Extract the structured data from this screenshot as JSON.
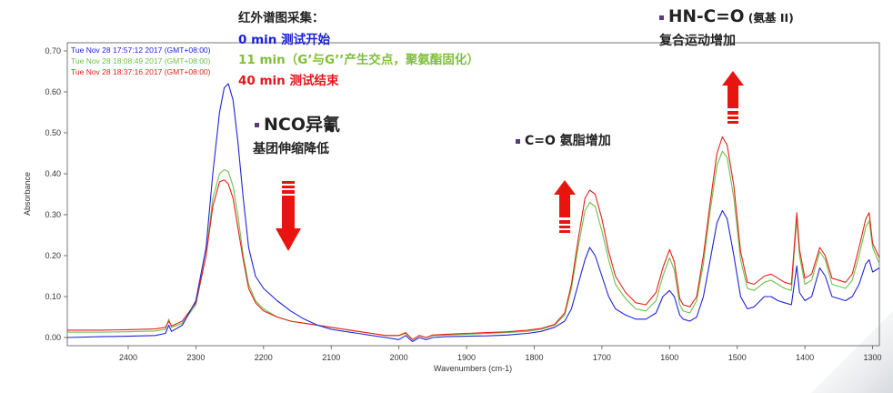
{
  "chart_data": {
    "type": "line",
    "xlabel": "Wavenumbers (cm-1)",
    "ylabel": "Absorbance",
    "xlim": [
      2490,
      1290
    ],
    "ylim": [
      -0.02,
      0.72
    ],
    "x_ticks": [
      2400,
      2300,
      2200,
      2100,
      2000,
      1900,
      1800,
      1700,
      1600,
      1500,
      1400,
      1300
    ],
    "x_tick_labels": [
      "2400",
      "2300",
      "2200",
      "2100",
      "2000",
      "1900",
      "1800",
      "1700",
      "1600",
      "1500",
      "1400",
      "1300"
    ],
    "y_ticks": [
      0.0,
      0.1,
      0.2,
      0.3,
      0.4,
      0.5,
      0.6,
      0.7
    ],
    "y_tick_labels": [
      "0.00",
      "0.10",
      "0.20",
      "0.30",
      "0.40",
      "0.50",
      "0.60",
      "0.70"
    ],
    "legend_position": "top-left",
    "series": [
      {
        "name": "Tue Nov 28 17:57:12 2017 (GMT+08:00)",
        "color": "#1f24d6",
        "points": [
          [
            2490,
            0.0
          ],
          [
            2440,
            0.002
          ],
          [
            2400,
            0.003
          ],
          [
            2360,
            0.005
          ],
          [
            2345,
            0.01
          ],
          [
            2340,
            0.03
          ],
          [
            2336,
            0.015
          ],
          [
            2320,
            0.03
          ],
          [
            2300,
            0.09
          ],
          [
            2285,
            0.22
          ],
          [
            2275,
            0.4
          ],
          [
            2265,
            0.55
          ],
          [
            2258,
            0.61
          ],
          [
            2252,
            0.62
          ],
          [
            2245,
            0.58
          ],
          [
            2238,
            0.48
          ],
          [
            2230,
            0.34
          ],
          [
            2222,
            0.22
          ],
          [
            2212,
            0.15
          ],
          [
            2200,
            0.12
          ],
          [
            2180,
            0.09
          ],
          [
            2160,
            0.065
          ],
          [
            2140,
            0.045
          ],
          [
            2120,
            0.03
          ],
          [
            2100,
            0.02
          ],
          [
            2080,
            0.015
          ],
          [
            2060,
            0.01
          ],
          [
            2040,
            0.005
          ],
          [
            2020,
            0.0
          ],
          [
            2000,
            -0.005
          ],
          [
            1990,
            0.005
          ],
          [
            1980,
            -0.01
          ],
          [
            1970,
            0.0
          ],
          [
            1960,
            -0.005
          ],
          [
            1950,
            0.0
          ],
          [
            1930,
            0.002
          ],
          [
            1900,
            0.003
          ],
          [
            1870,
            0.004
          ],
          [
            1840,
            0.006
          ],
          [
            1810,
            0.01
          ],
          [
            1790,
            0.015
          ],
          [
            1770,
            0.025
          ],
          [
            1755,
            0.04
          ],
          [
            1745,
            0.07
          ],
          [
            1735,
            0.13
          ],
          [
            1725,
            0.19
          ],
          [
            1718,
            0.22
          ],
          [
            1710,
            0.2
          ],
          [
            1700,
            0.15
          ],
          [
            1690,
            0.1
          ],
          [
            1680,
            0.07
          ],
          [
            1665,
            0.055
          ],
          [
            1650,
            0.045
          ],
          [
            1635,
            0.045
          ],
          [
            1620,
            0.06
          ],
          [
            1610,
            0.1
          ],
          [
            1600,
            0.115
          ],
          [
            1593,
            0.1
          ],
          [
            1585,
            0.055
          ],
          [
            1580,
            0.045
          ],
          [
            1570,
            0.04
          ],
          [
            1560,
            0.05
          ],
          [
            1550,
            0.1
          ],
          [
            1540,
            0.19
          ],
          [
            1530,
            0.28
          ],
          [
            1522,
            0.31
          ],
          [
            1515,
            0.29
          ],
          [
            1505,
            0.2
          ],
          [
            1495,
            0.1
          ],
          [
            1485,
            0.07
          ],
          [
            1475,
            0.075
          ],
          [
            1460,
            0.1
          ],
          [
            1450,
            0.1
          ],
          [
            1440,
            0.09
          ],
          [
            1430,
            0.085
          ],
          [
            1420,
            0.08
          ],
          [
            1412,
            0.175
          ],
          [
            1408,
            0.11
          ],
          [
            1400,
            0.09
          ],
          [
            1390,
            0.1
          ],
          [
            1378,
            0.17
          ],
          [
            1370,
            0.15
          ],
          [
            1360,
            0.1
          ],
          [
            1340,
            0.09
          ],
          [
            1330,
            0.1
          ],
          [
            1320,
            0.13
          ],
          [
            1310,
            0.18
          ],
          [
            1305,
            0.19
          ],
          [
            1300,
            0.16
          ],
          [
            1290,
            0.17
          ]
        ]
      },
      {
        "name": "Tue Nov 28 18:08:49 2017 (GMT+08:00)",
        "color": "#6fc04a",
        "points": [
          [
            2490,
            0.013
          ],
          [
            2440,
            0.013
          ],
          [
            2400,
            0.014
          ],
          [
            2360,
            0.016
          ],
          [
            2345,
            0.02
          ],
          [
            2340,
            0.045
          ],
          [
            2336,
            0.025
          ],
          [
            2320,
            0.035
          ],
          [
            2300,
            0.08
          ],
          [
            2285,
            0.2
          ],
          [
            2275,
            0.34
          ],
          [
            2265,
            0.4
          ],
          [
            2258,
            0.41
          ],
          [
            2252,
            0.405
          ],
          [
            2245,
            0.37
          ],
          [
            2238,
            0.3
          ],
          [
            2230,
            0.2
          ],
          [
            2222,
            0.13
          ],
          [
            2212,
            0.09
          ],
          [
            2200,
            0.07
          ],
          [
            2180,
            0.05
          ],
          [
            2160,
            0.04
          ],
          [
            2140,
            0.035
          ],
          [
            2120,
            0.03
          ],
          [
            2100,
            0.025
          ],
          [
            2080,
            0.02
          ],
          [
            2060,
            0.015
          ],
          [
            2040,
            0.01
          ],
          [
            2020,
            0.005
          ],
          [
            2000,
            0.005
          ],
          [
            1990,
            0.01
          ],
          [
            1980,
            -0.005
          ],
          [
            1970,
            0.005
          ],
          [
            1960,
            0.0
          ],
          [
            1950,
            0.005
          ],
          [
            1930,
            0.006
          ],
          [
            1900,
            0.008
          ],
          [
            1870,
            0.01
          ],
          [
            1840,
            0.012
          ],
          [
            1810,
            0.015
          ],
          [
            1790,
            0.02
          ],
          [
            1770,
            0.03
          ],
          [
            1755,
            0.055
          ],
          [
            1745,
            0.12
          ],
          [
            1735,
            0.22
          ],
          [
            1725,
            0.31
          ],
          [
            1718,
            0.33
          ],
          [
            1710,
            0.32
          ],
          [
            1700,
            0.26
          ],
          [
            1690,
            0.19
          ],
          [
            1680,
            0.13
          ],
          [
            1665,
            0.095
          ],
          [
            1650,
            0.07
          ],
          [
            1635,
            0.065
          ],
          [
            1620,
            0.09
          ],
          [
            1610,
            0.15
          ],
          [
            1600,
            0.195
          ],
          [
            1593,
            0.165
          ],
          [
            1585,
            0.08
          ],
          [
            1580,
            0.065
          ],
          [
            1570,
            0.06
          ],
          [
            1560,
            0.09
          ],
          [
            1550,
            0.18
          ],
          [
            1540,
            0.31
          ],
          [
            1530,
            0.42
          ],
          [
            1522,
            0.455
          ],
          [
            1515,
            0.44
          ],
          [
            1505,
            0.34
          ],
          [
            1495,
            0.19
          ],
          [
            1485,
            0.12
          ],
          [
            1475,
            0.115
          ],
          [
            1460,
            0.135
          ],
          [
            1450,
            0.14
          ],
          [
            1440,
            0.13
          ],
          [
            1430,
            0.12
          ],
          [
            1420,
            0.115
          ],
          [
            1412,
            0.29
          ],
          [
            1408,
            0.2
          ],
          [
            1400,
            0.13
          ],
          [
            1390,
            0.14
          ],
          [
            1378,
            0.21
          ],
          [
            1370,
            0.19
          ],
          [
            1360,
            0.13
          ],
          [
            1340,
            0.12
          ],
          [
            1330,
            0.14
          ],
          [
            1320,
            0.2
          ],
          [
            1310,
            0.27
          ],
          [
            1305,
            0.285
          ],
          [
            1300,
            0.22
          ],
          [
            1290,
            0.18
          ]
        ]
      },
      {
        "name": "Tue Nov 28 18:37:16 2017 (GMT+08:00)",
        "color": "#e52019",
        "points": [
          [
            2490,
            0.018
          ],
          [
            2440,
            0.018
          ],
          [
            2400,
            0.019
          ],
          [
            2360,
            0.021
          ],
          [
            2345,
            0.025
          ],
          [
            2340,
            0.04
          ],
          [
            2336,
            0.028
          ],
          [
            2320,
            0.04
          ],
          [
            2300,
            0.085
          ],
          [
            2285,
            0.2
          ],
          [
            2275,
            0.32
          ],
          [
            2265,
            0.38
          ],
          [
            2258,
            0.385
          ],
          [
            2252,
            0.375
          ],
          [
            2245,
            0.34
          ],
          [
            2238,
            0.27
          ],
          [
            2230,
            0.19
          ],
          [
            2222,
            0.12
          ],
          [
            2212,
            0.085
          ],
          [
            2200,
            0.065
          ],
          [
            2180,
            0.05
          ],
          [
            2160,
            0.04
          ],
          [
            2140,
            0.035
          ],
          [
            2120,
            0.03
          ],
          [
            2100,
            0.025
          ],
          [
            2080,
            0.02
          ],
          [
            2060,
            0.015
          ],
          [
            2040,
            0.01
          ],
          [
            2020,
            0.005
          ],
          [
            2000,
            0.005
          ],
          [
            1990,
            0.012
          ],
          [
            1980,
            -0.005
          ],
          [
            1970,
            0.005
          ],
          [
            1960,
            0.0
          ],
          [
            1950,
            0.006
          ],
          [
            1930,
            0.008
          ],
          [
            1900,
            0.01
          ],
          [
            1870,
            0.012
          ],
          [
            1840,
            0.014
          ],
          [
            1810,
            0.018
          ],
          [
            1790,
            0.022
          ],
          [
            1770,
            0.032
          ],
          [
            1755,
            0.06
          ],
          [
            1745,
            0.13
          ],
          [
            1735,
            0.24
          ],
          [
            1725,
            0.34
          ],
          [
            1718,
            0.36
          ],
          [
            1710,
            0.35
          ],
          [
            1700,
            0.29
          ],
          [
            1690,
            0.21
          ],
          [
            1680,
            0.15
          ],
          [
            1665,
            0.11
          ],
          [
            1650,
            0.085
          ],
          [
            1635,
            0.08
          ],
          [
            1620,
            0.11
          ],
          [
            1610,
            0.17
          ],
          [
            1600,
            0.215
          ],
          [
            1593,
            0.185
          ],
          [
            1585,
            0.095
          ],
          [
            1580,
            0.08
          ],
          [
            1570,
            0.075
          ],
          [
            1560,
            0.1
          ],
          [
            1550,
            0.2
          ],
          [
            1540,
            0.33
          ],
          [
            1530,
            0.45
          ],
          [
            1522,
            0.49
          ],
          [
            1515,
            0.47
          ],
          [
            1505,
            0.37
          ],
          [
            1495,
            0.21
          ],
          [
            1485,
            0.135
          ],
          [
            1475,
            0.13
          ],
          [
            1460,
            0.15
          ],
          [
            1450,
            0.155
          ],
          [
            1440,
            0.145
          ],
          [
            1430,
            0.135
          ],
          [
            1420,
            0.13
          ],
          [
            1412,
            0.305
          ],
          [
            1408,
            0.215
          ],
          [
            1400,
            0.145
          ],
          [
            1390,
            0.155
          ],
          [
            1378,
            0.22
          ],
          [
            1370,
            0.2
          ],
          [
            1360,
            0.145
          ],
          [
            1340,
            0.135
          ],
          [
            1330,
            0.155
          ],
          [
            1320,
            0.22
          ],
          [
            1310,
            0.29
          ],
          [
            1305,
            0.305
          ],
          [
            1300,
            0.23
          ],
          [
            1290,
            0.195
          ]
        ]
      }
    ]
  },
  "annotations": {
    "collection_title": "红外谱图采集：",
    "t0": "0 min  测试开始",
    "t11": "11 min（G’与G’’产生交点，聚氨酯固化）",
    "t40": "40 min 测试结束",
    "nco_title": "NCO异氰",
    "nco_desc": "基团伸缩降低",
    "co_label": "C=O 氨脂增加",
    "hn_title": "HN-C=O",
    "hn_suffix": " (氨基 II)",
    "hn_desc": "复合运动增加"
  },
  "arrows": [
    {
      "name": "nco-down-arrow",
      "direction": "down",
      "color": "#e8140f"
    },
    {
      "name": "co-up-arrow",
      "direction": "up",
      "color": "#e8140f"
    },
    {
      "name": "hn-up-arrow",
      "direction": "up",
      "color": "#e8140f"
    }
  ]
}
